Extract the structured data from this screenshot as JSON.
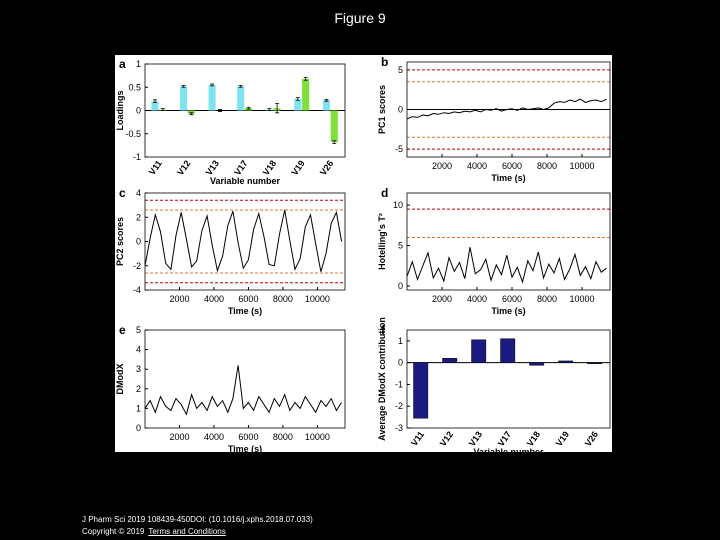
{
  "title": "Figure 9",
  "chart_data": [
    {
      "type": "bar",
      "label": "a",
      "xlabel": "Variable number",
      "ylabel": "Loadings",
      "categories": [
        "V11",
        "V12",
        "V13",
        "V17",
        "V18",
        "V19",
        "V26"
      ],
      "series": [
        {
          "color": "#7fe3f0",
          "values": [
            0.2,
            0.52,
            0.55,
            0.52,
            0.02,
            0.25,
            0.22
          ],
          "errors": [
            0.03,
            0.02,
            0.02,
            0.02,
            0.02,
            0.03,
            0.02
          ]
        },
        {
          "color": "#7ee03a",
          "values": [
            0.02,
            -0.07,
            0.0,
            0.05,
            0.05,
            0.68,
            -0.68
          ],
          "errors": [
            0.02,
            0.02,
            0.02,
            0.02,
            0.1,
            0.03,
            0.03
          ]
        }
      ],
      "ylim": [
        -1,
        1
      ],
      "yticks": [
        -1,
        -0.5,
        0,
        0.5,
        1
      ]
    },
    {
      "type": "line",
      "label": "b",
      "xlabel": "Time (s)",
      "ylabel": "PC1 scores",
      "x": [
        0,
        300,
        600,
        900,
        1200,
        1500,
        1800,
        2100,
        2400,
        2700,
        3000,
        3300,
        3600,
        3900,
        4200,
        4500,
        4800,
        5100,
        5400,
        5700,
        6000,
        6300,
        6600,
        6900,
        7200,
        7500,
        7800,
        8100,
        8400,
        8700,
        9000,
        9300,
        9600,
        9900,
        10200,
        10500,
        10800,
        11100,
        11400
      ],
      "series": [
        {
          "color": "#000000",
          "values": [
            -1.2,
            -0.9,
            -1.0,
            -0.7,
            -0.8,
            -0.5,
            -0.6,
            -0.4,
            -0.5,
            -0.3,
            -0.4,
            -0.2,
            -0.3,
            -0.1,
            -0.3,
            0.0,
            -0.1,
            0.1,
            -0.2,
            0.0,
            0.1,
            -0.1,
            0.2,
            0.0,
            0.1,
            0.2,
            0.0,
            0.2,
            0.8,
            1.0,
            0.9,
            1.2,
            1.0,
            1.3,
            0.9,
            1.1,
            1.2,
            1.0,
            1.3
          ]
        }
      ],
      "reference_lines": [
        {
          "value": 5,
          "color": "#c00000"
        },
        {
          "value": 3.5,
          "color": "#e07030"
        },
        {
          "value": 0,
          "color": "#000000"
        },
        {
          "value": -3.5,
          "color": "#e07030"
        },
        {
          "value": -5,
          "color": "#c00000"
        }
      ],
      "xlim": [
        0,
        11600
      ],
      "xticks": [
        2000,
        4000,
        6000,
        8000,
        10000
      ],
      "ylim": [
        -6,
        6
      ],
      "yticks": [
        -5,
        0,
        5
      ]
    },
    {
      "type": "line",
      "label": "c",
      "xlabel": "Time (s)",
      "ylabel": "PC2 scores",
      "x": [
        0,
        300,
        600,
        900,
        1200,
        1500,
        1800,
        2100,
        2400,
        2700,
        3000,
        3300,
        3600,
        3900,
        4200,
        4500,
        4800,
        5100,
        5400,
        5700,
        6000,
        6300,
        6600,
        6900,
        7200,
        7500,
        7800,
        8100,
        8400,
        8700,
        9000,
        9300,
        9600,
        9900,
        10200,
        10500,
        10800,
        11100,
        11400
      ],
      "series": [
        {
          "color": "#000000",
          "values": [
            -2.0,
            0.3,
            2.2,
            0.8,
            -1.8,
            -2.3,
            0.5,
            2.4,
            0.2,
            -2.1,
            -1.6,
            0.9,
            2.1,
            -0.3,
            -2.4,
            -1.2,
            1.3,
            2.5,
            -0.1,
            -2.2,
            -1.5,
            1.0,
            2.3,
            0.4,
            -1.9,
            -2.0,
            0.6,
            2.6,
            0.1,
            -2.3,
            -1.4,
            1.2,
            2.2,
            -0.2,
            -2.5,
            -1.0,
            1.5,
            2.4,
            0.0
          ]
        }
      ],
      "reference_lines": [
        {
          "value": 3.4,
          "color": "#c00000"
        },
        {
          "value": 2.6,
          "color": "#e07030"
        },
        {
          "value": -2.6,
          "color": "#e07030"
        },
        {
          "value": -3.4,
          "color": "#c00000"
        }
      ],
      "xlim": [
        0,
        11600
      ],
      "xticks": [
        2000,
        4000,
        6000,
        8000,
        10000
      ],
      "ylim": [
        -4,
        4
      ],
      "yticks": [
        -4,
        -2,
        0,
        2,
        4
      ]
    },
    {
      "type": "line",
      "label": "d",
      "xlabel": "Time (s)",
      "ylabel": "Hotelling's T²",
      "x": [
        0,
        300,
        600,
        900,
        1200,
        1500,
        1800,
        2100,
        2400,
        2700,
        3000,
        3300,
        3600,
        3900,
        4200,
        4500,
        4800,
        5100,
        5400,
        5700,
        6000,
        6300,
        6600,
        6900,
        7200,
        7500,
        7800,
        8100,
        8400,
        8700,
        9000,
        9300,
        9600,
        9900,
        10200,
        10500,
        10800,
        11100,
        11400
      ],
      "series": [
        {
          "color": "#000000",
          "values": [
            1.2,
            3.0,
            0.8,
            2.5,
            4.1,
            1.0,
            2.2,
            0.6,
            3.5,
            1.8,
            2.9,
            0.9,
            4.8,
            1.5,
            2.0,
            3.3,
            0.7,
            2.6,
            1.4,
            3.8,
            1.1,
            2.3,
            0.5,
            3.1,
            1.9,
            4.2,
            1.0,
            2.7,
            1.6,
            3.4,
            0.8,
            2.1,
            3.9,
            1.3,
            2.4,
            0.9,
            3.0,
            1.7,
            2.2
          ]
        }
      ],
      "reference_lines": [
        {
          "value": 9.5,
          "color": "#c00000"
        },
        {
          "value": 6,
          "color": "#e07030"
        }
      ],
      "xlim": [
        0,
        11600
      ],
      "xticks": [
        2000,
        4000,
        6000,
        8000,
        10000
      ],
      "ylim": [
        -0.5,
        11.5
      ],
      "yticks": [
        0,
        5,
        10
      ]
    },
    {
      "type": "line",
      "label": "e",
      "xlabel": "Time (s)",
      "ylabel": "DModX",
      "x": [
        0,
        300,
        600,
        900,
        1200,
        1500,
        1800,
        2100,
        2400,
        2700,
        3000,
        3300,
        3600,
        3900,
        4200,
        4500,
        4800,
        5100,
        5400,
        5700,
        6000,
        6300,
        6600,
        6900,
        7200,
        7500,
        7800,
        8100,
        8400,
        8700,
        9000,
        9300,
        9600,
        9900,
        10200,
        10500,
        10800,
        11100,
        11400
      ],
      "series": [
        {
          "color": "#000000",
          "values": [
            1.0,
            1.4,
            0.8,
            1.6,
            1.1,
            0.9,
            1.5,
            1.2,
            0.7,
            1.7,
            1.0,
            1.3,
            0.9,
            1.6,
            1.1,
            1.4,
            0.8,
            1.5,
            3.2,
            1.0,
            1.3,
            0.9,
            1.6,
            1.2,
            0.8,
            1.5,
            1.1,
            1.7,
            0.9,
            1.3,
            1.0,
            1.6,
            1.2,
            0.8,
            1.4,
            1.1,
            1.5,
            0.9,
            1.3
          ]
        }
      ],
      "xlim": [
        0,
        11600
      ],
      "xticks": [
        2000,
        4000,
        6000,
        8000,
        10000
      ],
      "ylim": [
        0,
        5
      ],
      "yticks": [
        0,
        1,
        2,
        3,
        4,
        5
      ]
    },
    {
      "type": "bar",
      "label": "f",
      "xlabel": "Variable number",
      "ylabel": "Average DModX contribution",
      "categories": [
        "V11",
        "V12",
        "V13",
        "V17",
        "V18",
        "V19",
        "V26"
      ],
      "series": [
        {
          "color": "#1a1a80",
          "values": [
            -2.55,
            0.2,
            1.05,
            1.1,
            -0.12,
            0.08,
            -0.05
          ]
        }
      ],
      "ylim": [
        -3,
        1.5
      ],
      "yticks": [
        -3,
        -2,
        -1,
        0,
        1
      ]
    }
  ],
  "footer": {
    "citation": "J Pharm Sci 2019 108439-450DOI: (10.1016/j.xphs.2018.07.033)",
    "copyright": "Copyright © 2019",
    "link": "Terms and Conditions"
  }
}
